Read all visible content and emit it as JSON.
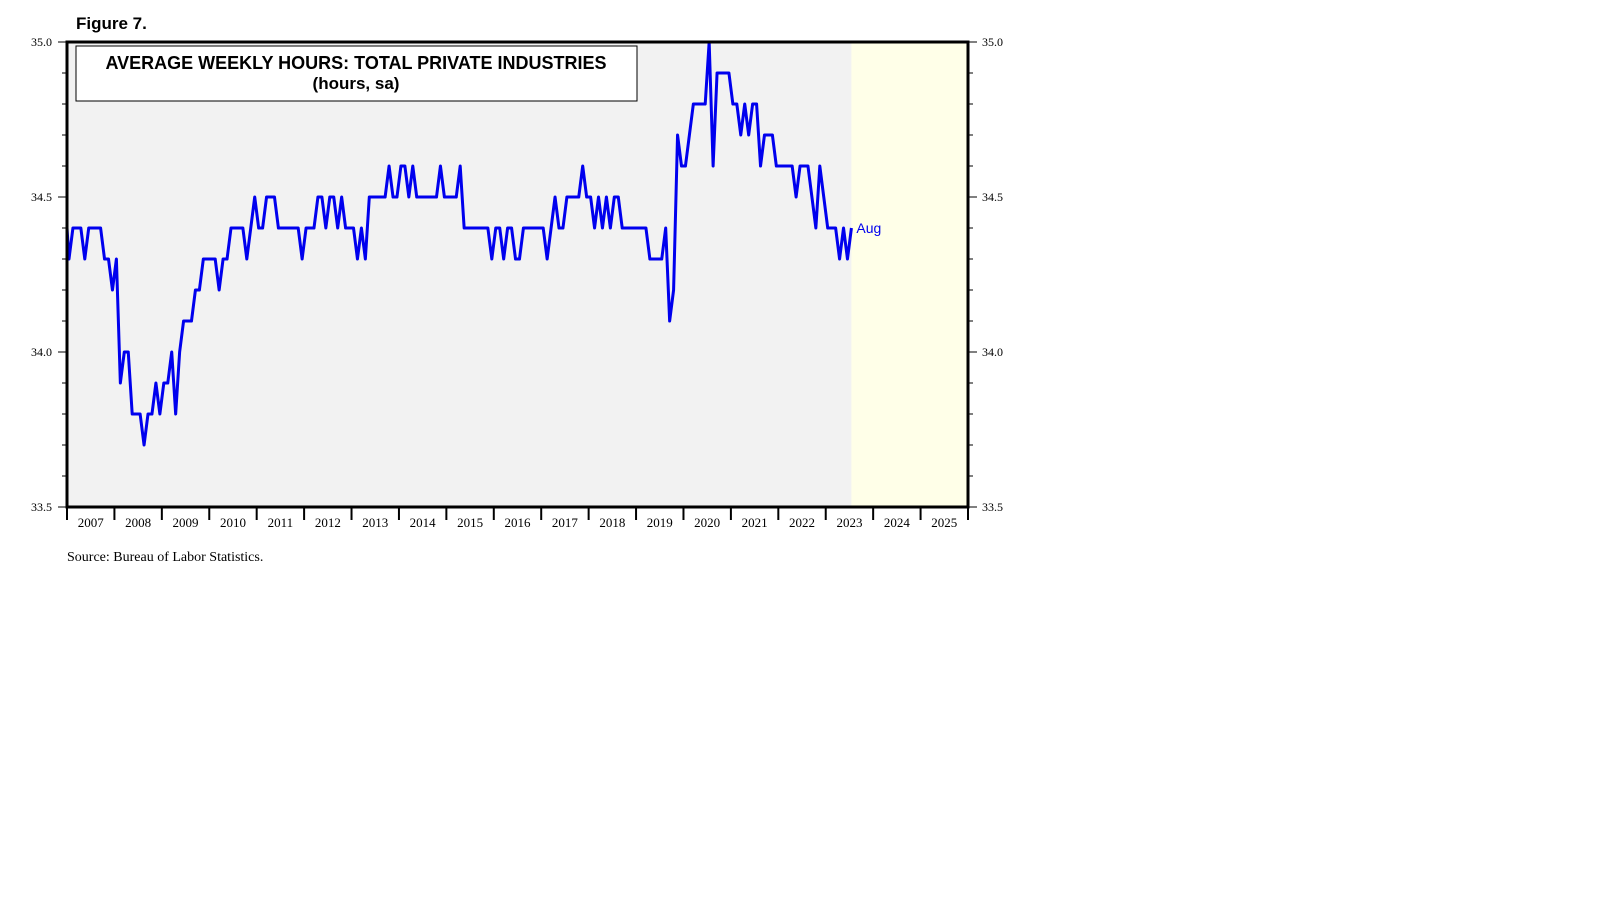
{
  "figure_label": "Figure 7.",
  "source": "Source: Bureau of Labor Statistics.",
  "colors": {
    "background": "#ffffe8",
    "history_fill": "#f2f2f2",
    "line": "#0000ee",
    "frame": "#000000"
  },
  "chart_data": {
    "type": "line",
    "title": "AVERAGE WEEKLY HOURS: TOTAL PRIVATE INDUSTRIES",
    "subtitle": "(hours, sa)",
    "ylim": [
      33.5,
      35.0
    ],
    "y_ticks": [
      "33.5",
      "34.0",
      "34.5",
      "35.0"
    ],
    "x_start_year": 2007,
    "x_end_year": 2025,
    "x_ticks": [
      "2007",
      "2008",
      "2009",
      "2010",
      "2011",
      "2012",
      "2013",
      "2014",
      "2015",
      "2016",
      "2017",
      "2018",
      "2019",
      "2020",
      "2021",
      "2022",
      "2023",
      "2024",
      "2025"
    ],
    "grid": false,
    "last_point_label": "Aug",
    "series": [
      {
        "start": "2006-03",
        "frequency": "monthly",
        "values": [
          34.5,
          34.3,
          34.3,
          34.4,
          34.4,
          34.4,
          34.5,
          34.4,
          34.4,
          34.4,
          34.3,
          34.4,
          34.4,
          34.4,
          34.3,
          34.4,
          34.4,
          34.4,
          34.4,
          34.3,
          34.3,
          34.2,
          34.3,
          33.9,
          34.0,
          34.0,
          33.8,
          33.8,
          33.8,
          33.7,
          33.8,
          33.8,
          33.9,
          33.8,
          33.9,
          33.9,
          34.0,
          33.8,
          34.0,
          34.1,
          34.1,
          34.1,
          34.2,
          34.2,
          34.3,
          34.3,
          34.3,
          34.3,
          34.2,
          34.3,
          34.3,
          34.4,
          34.4,
          34.4,
          34.4,
          34.3,
          34.4,
          34.5,
          34.4,
          34.4,
          34.5,
          34.5,
          34.5,
          34.4,
          34.4,
          34.4,
          34.4,
          34.4,
          34.4,
          34.3,
          34.4,
          34.4,
          34.4,
          34.5,
          34.5,
          34.4,
          34.5,
          34.5,
          34.4,
          34.5,
          34.4,
          34.4,
          34.4,
          34.3,
          34.4,
          34.3,
          34.5,
          34.5,
          34.5,
          34.5,
          34.5,
          34.6,
          34.5,
          34.5,
          34.6,
          34.6,
          34.5,
          34.6,
          34.5,
          34.5,
          34.5,
          34.5,
          34.5,
          34.5,
          34.6,
          34.5,
          34.5,
          34.5,
          34.5,
          34.6,
          34.4,
          34.4,
          34.4,
          34.4,
          34.4,
          34.4,
          34.4,
          34.3,
          34.4,
          34.4,
          34.3,
          34.4,
          34.4,
          34.3,
          34.3,
          34.4,
          34.4,
          34.4,
          34.4,
          34.4,
          34.4,
          34.3,
          34.4,
          34.5,
          34.4,
          34.4,
          34.5,
          34.5,
          34.5,
          34.5,
          34.6,
          34.5,
          34.5,
          34.4,
          34.5,
          34.4,
          34.5,
          34.4,
          34.5,
          34.5,
          34.4,
          34.4,
          34.4,
          34.4,
          34.4,
          34.4,
          34.4,
          34.3,
          34.3,
          34.3,
          34.3,
          34.4,
          34.1,
          34.2,
          34.7,
          34.6,
          34.6,
          34.7,
          34.8,
          34.8,
          34.8,
          34.8,
          35.0,
          34.6,
          34.9,
          34.9,
          34.9,
          34.9,
          34.8,
          34.8,
          34.7,
          34.8,
          34.7,
          34.8,
          34.8,
          34.6,
          34.7,
          34.7,
          34.7,
          34.6,
          34.6,
          34.6,
          34.6,
          34.6,
          34.5,
          34.6,
          34.6,
          34.6,
          34.5,
          34.4,
          34.6,
          34.5,
          34.4,
          34.4,
          34.4,
          34.3,
          34.4,
          34.3,
          34.4
        ]
      }
    ]
  }
}
